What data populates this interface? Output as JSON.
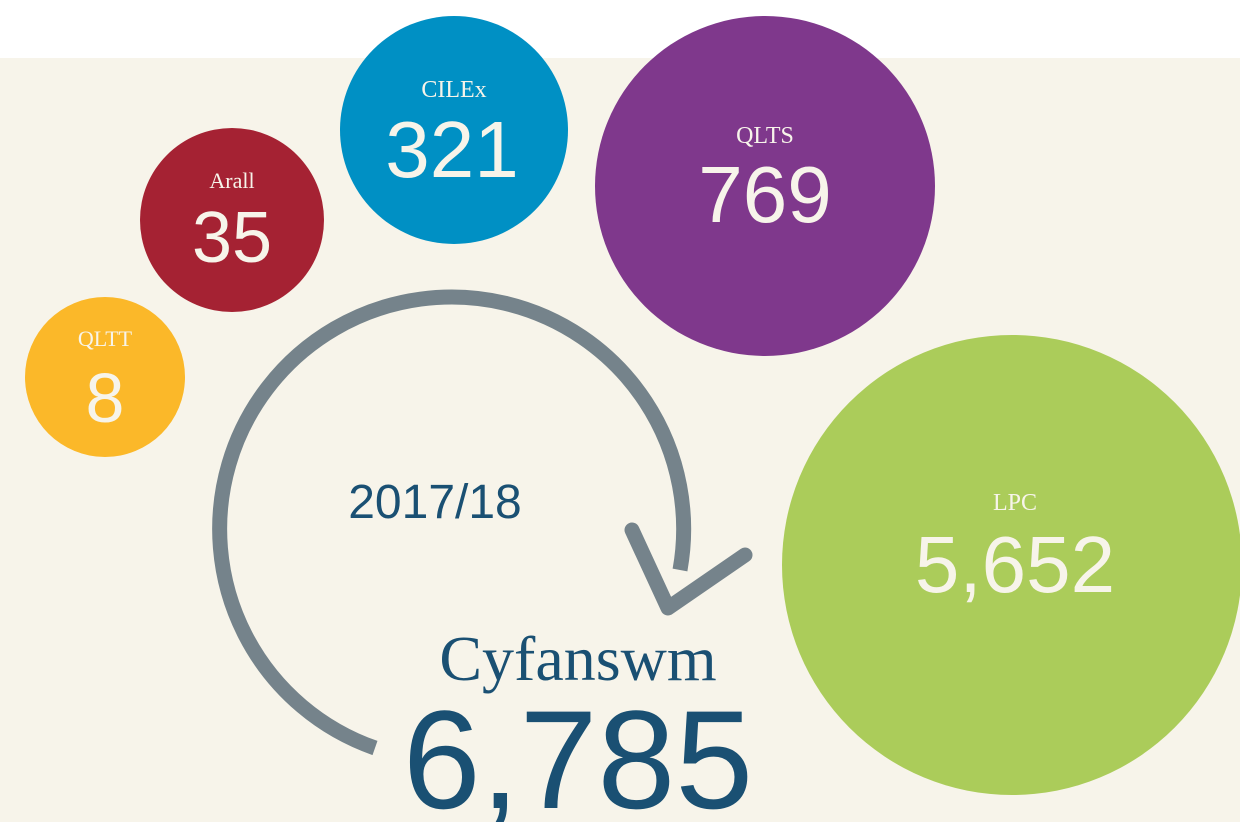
{
  "period": "2017/18",
  "total": {
    "label": "Cyfanswm",
    "value": "6,785"
  },
  "bubbles": [
    {
      "label": "QLTT",
      "value": "8"
    },
    {
      "label": "Arall",
      "value": "35"
    },
    {
      "label": "CILEx",
      "value": "321"
    },
    {
      "label": "QLTS",
      "value": "769"
    },
    {
      "label": "LPC",
      "value": "5,652"
    }
  ]
}
